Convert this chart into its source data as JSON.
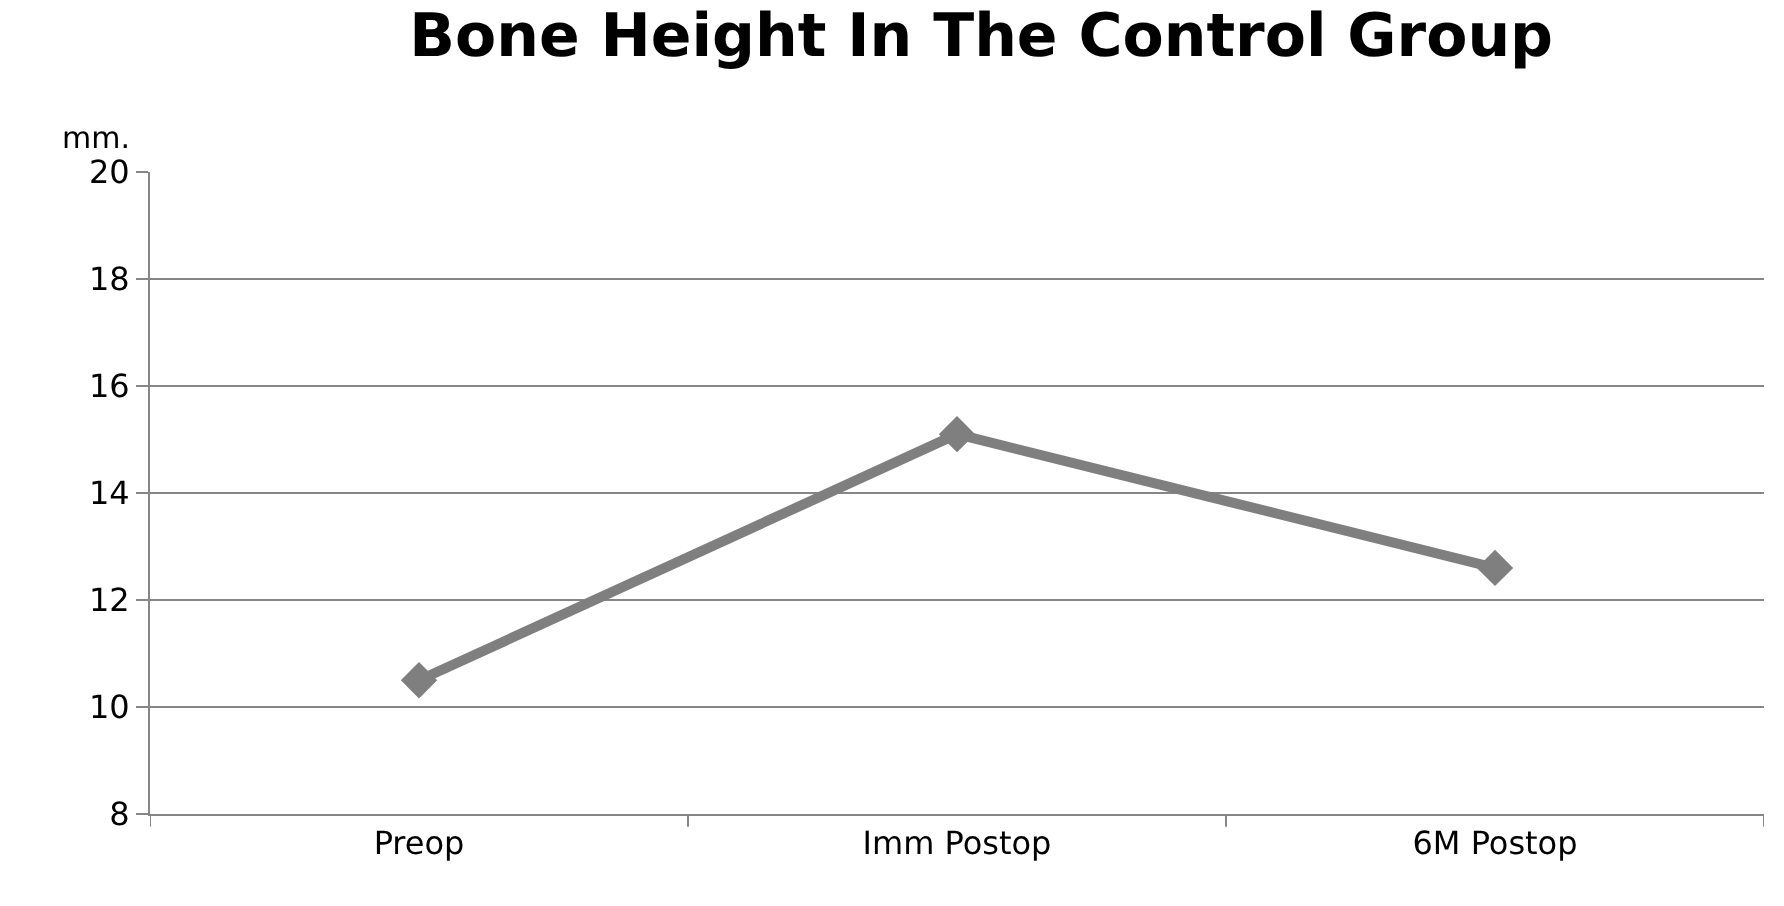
{
  "chart_data": {
    "type": "line",
    "title": "Bone Height In The Control Group",
    "ylabel": "mm.",
    "categories": [
      "Preop",
      "Imm Postop",
      "6M Postop"
    ],
    "series": [
      {
        "color": "#7f7f7f",
        "values": [
          10.5,
          15.1,
          12.6
        ]
      }
    ],
    "ylim": [
      8,
      20
    ],
    "yticks": [
      8,
      10,
      12,
      14,
      16,
      18,
      20
    ],
    "grid": "y",
    "marker": "diamond",
    "line_style": "solid"
  }
}
